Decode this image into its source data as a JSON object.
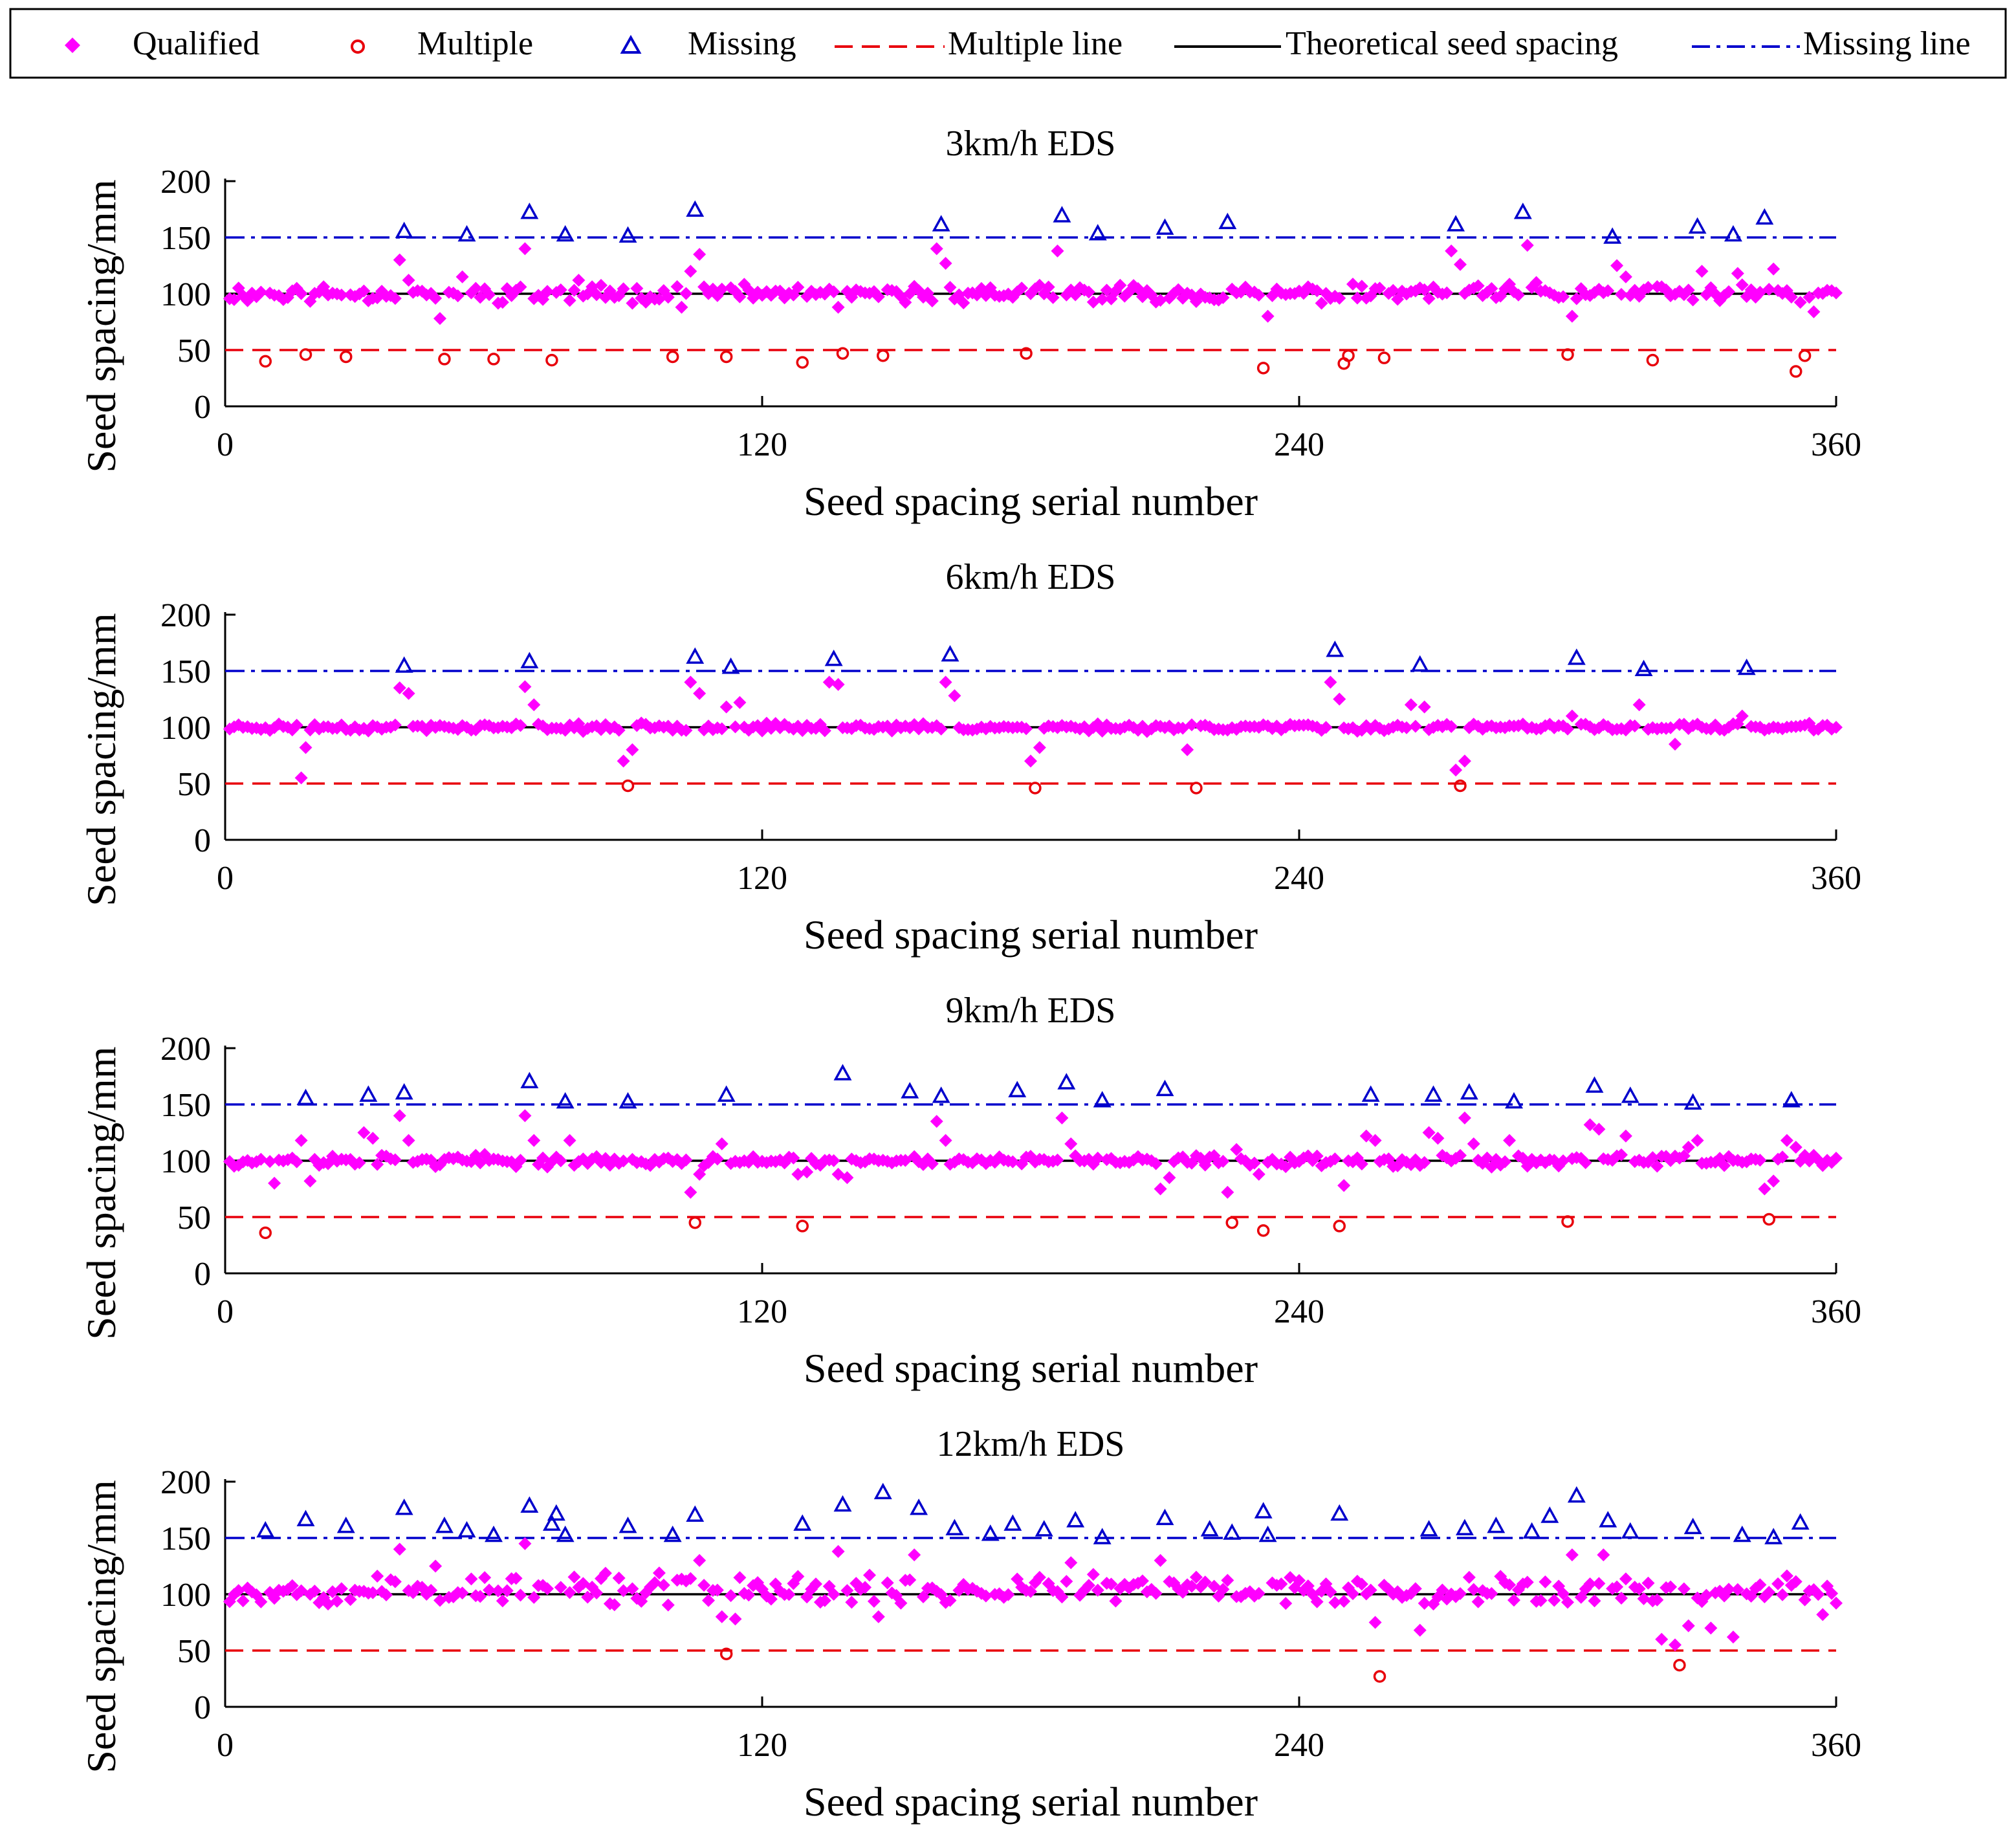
{
  "legend": {
    "items": [
      {
        "key": "qualified",
        "label": "Qualified",
        "marker": "diamond",
        "color": "#ff00ff"
      },
      {
        "key": "multiple",
        "label": "Multiple",
        "marker": "circle",
        "color": "#e8000b"
      },
      {
        "key": "missing",
        "label": "Missing",
        "marker": "triangle",
        "color": "#0000cc"
      },
      {
        "key": "multiple_line",
        "label": "Multiple line",
        "marker": "dashed-line",
        "color": "#e8000b"
      },
      {
        "key": "theoretical",
        "label": "Theoretical seed spacing",
        "marker": "solid-line",
        "color": "#000000"
      },
      {
        "key": "missing_line",
        "label": "Missing line",
        "marker": "dashdot-line",
        "color": "#0000cc"
      }
    ]
  },
  "chart_data": [
    {
      "type": "scatter",
      "title": "3km/h EDS",
      "xlabel": "Seed spacing serial number",
      "ylabel": "Seed spacing/mm",
      "xlim": [
        0,
        360
      ],
      "ylim": [
        0,
        200
      ],
      "xticks": [
        0,
        120,
        240,
        360
      ],
      "yticks": [
        0,
        50,
        100,
        150,
        200
      ],
      "reference_lines": {
        "theoretical": 100,
        "multiple": 50,
        "missing": 150
      },
      "multiple": [
        [
          9,
          40
        ],
        [
          18,
          46
        ],
        [
          27,
          44
        ],
        [
          49,
          42
        ],
        [
          60,
          42
        ],
        [
          73,
          41
        ],
        [
          100,
          44
        ],
        [
          112,
          44
        ],
        [
          129,
          39
        ],
        [
          138,
          47
        ],
        [
          147,
          45
        ],
        [
          179,
          47
        ],
        [
          232,
          34
        ],
        [
          250,
          38
        ],
        [
          251,
          45
        ],
        [
          259,
          43
        ],
        [
          300,
          46
        ],
        [
          319,
          41
        ],
        [
          351,
          31
        ],
        [
          353,
          45
        ]
      ],
      "missing": [
        [
          40,
          155
        ],
        [
          54,
          152
        ],
        [
          68,
          172
        ],
        [
          76,
          152
        ],
        [
          90,
          151
        ],
        [
          105,
          174
        ],
        [
          160,
          161
        ],
        [
          187,
          169
        ],
        [
          195,
          153
        ],
        [
          210,
          158
        ],
        [
          224,
          163
        ],
        [
          275,
          161
        ],
        [
          290,
          172
        ],
        [
          310,
          150
        ],
        [
          329,
          159
        ],
        [
          337,
          152
        ],
        [
          344,
          167
        ]
      ],
      "qualified_base": 100,
      "qualified_noise": 9,
      "qualified_seed": 11,
      "qualified_extra": [
        [
          39,
          130
        ],
        [
          41,
          112
        ],
        [
          48,
          78
        ],
        [
          53,
          115
        ],
        [
          67,
          140
        ],
        [
          71,
          95
        ],
        [
          73,
          74
        ],
        [
          79,
          112
        ],
        [
          102,
          88
        ],
        [
          104,
          120
        ],
        [
          106,
          135
        ],
        [
          137,
          88
        ],
        [
          159,
          140
        ],
        [
          161,
          127
        ],
        [
          186,
          138
        ],
        [
          233,
          80
        ],
        [
          250,
          78
        ],
        [
          274,
          138
        ],
        [
          276,
          126
        ],
        [
          291,
          143
        ],
        [
          293,
          110
        ],
        [
          301,
          80
        ],
        [
          311,
          125
        ],
        [
          313,
          115
        ],
        [
          330,
          120
        ],
        [
          338,
          118
        ],
        [
          346,
          122
        ],
        [
          355,
          84
        ]
      ]
    },
    {
      "type": "scatter",
      "title": "6km/h EDS",
      "xlabel": "Seed spacing serial number",
      "ylabel": "Seed spacing/mm",
      "xlim": [
        0,
        360
      ],
      "ylim": [
        0,
        200
      ],
      "xticks": [
        0,
        120,
        240,
        360
      ],
      "yticks": [
        0,
        50,
        100,
        150,
        200
      ],
      "reference_lines": {
        "theoretical": 100,
        "multiple": 50,
        "missing": 150
      },
      "multiple": [
        [
          90,
          48
        ],
        [
          181,
          46
        ],
        [
          217,
          46
        ],
        [
          276,
          48
        ]
      ],
      "missing": [
        [
          40,
          154
        ],
        [
          68,
          158
        ],
        [
          105,
          162
        ],
        [
          113,
          153
        ],
        [
          136,
          160
        ],
        [
          162,
          164
        ],
        [
          248,
          168
        ],
        [
          267,
          155
        ],
        [
          302,
          161
        ],
        [
          317,
          151
        ],
        [
          340,
          152
        ]
      ],
      "qualified_base": 100,
      "qualified_noise": 4,
      "qualified_seed": 23,
      "qualified_extra": [
        [
          17,
          55
        ],
        [
          18,
          82
        ],
        [
          39,
          135
        ],
        [
          41,
          130
        ],
        [
          67,
          136
        ],
        [
          69,
          120
        ],
        [
          89,
          70
        ],
        [
          91,
          80
        ],
        [
          104,
          140
        ],
        [
          106,
          130
        ],
        [
          112,
          118
        ],
        [
          115,
          122
        ],
        [
          135,
          140
        ],
        [
          137,
          138
        ],
        [
          161,
          140
        ],
        [
          163,
          128
        ],
        [
          180,
          70
        ],
        [
          182,
          82
        ],
        [
          215,
          80
        ],
        [
          217,
          88
        ],
        [
          247,
          140
        ],
        [
          249,
          125
        ],
        [
          265,
          120
        ],
        [
          268,
          118
        ],
        [
          275,
          62
        ],
        [
          277,
          70
        ],
        [
          301,
          110
        ],
        [
          316,
          120
        ],
        [
          324,
          85
        ],
        [
          339,
          110
        ]
      ]
    },
    {
      "type": "scatter",
      "title": "9km/h EDS",
      "xlabel": "Seed spacing serial number",
      "ylabel": "Seed spacing/mm",
      "xlim": [
        0,
        360
      ],
      "ylim": [
        0,
        200
      ],
      "xticks": [
        0,
        120,
        240,
        360
      ],
      "yticks": [
        0,
        50,
        100,
        150,
        200
      ],
      "reference_lines": {
        "theoretical": 100,
        "multiple": 50,
        "missing": 150
      },
      "multiple": [
        [
          9,
          36
        ],
        [
          105,
          45
        ],
        [
          129,
          42
        ],
        [
          225,
          45
        ],
        [
          232,
          38
        ],
        [
          249,
          42
        ],
        [
          300,
          46
        ],
        [
          345,
          48
        ]
      ],
      "missing": [
        [
          18,
          155
        ],
        [
          32,
          158
        ],
        [
          40,
          160
        ],
        [
          68,
          170
        ],
        [
          76,
          152
        ],
        [
          90,
          152
        ],
        [
          112,
          158
        ],
        [
          138,
          177
        ],
        [
          153,
          161
        ],
        [
          160,
          157
        ],
        [
          177,
          162
        ],
        [
          188,
          169
        ],
        [
          196,
          153
        ],
        [
          210,
          163
        ],
        [
          256,
          158
        ],
        [
          270,
          158
        ],
        [
          278,
          160
        ],
        [
          288,
          152
        ],
        [
          306,
          166
        ],
        [
          314,
          157
        ],
        [
          328,
          151
        ],
        [
          350,
          153
        ]
      ],
      "qualified_base": 100,
      "qualified_noise": 6,
      "qualified_seed": 37,
      "qualified_extra": [
        [
          9,
          72
        ],
        [
          11,
          80
        ],
        [
          17,
          118
        ],
        [
          19,
          82
        ],
        [
          31,
          125
        ],
        [
          33,
          120
        ],
        [
          39,
          140
        ],
        [
          41,
          118
        ],
        [
          67,
          140
        ],
        [
          69,
          118
        ],
        [
          77,
          118
        ],
        [
          104,
          72
        ],
        [
          106,
          88
        ],
        [
          111,
          115
        ],
        [
          128,
          88
        ],
        [
          130,
          90
        ],
        [
          137,
          88
        ],
        [
          139,
          85
        ],
        [
          159,
          135
        ],
        [
          161,
          118
        ],
        [
          187,
          138
        ],
        [
          189,
          115
        ],
        [
          209,
          75
        ],
        [
          211,
          85
        ],
        [
          224,
          72
        ],
        [
          226,
          110
        ],
        [
          231,
          88
        ],
        [
          250,
          78
        ],
        [
          255,
          122
        ],
        [
          257,
          118
        ],
        [
          269,
          125
        ],
        [
          271,
          120
        ],
        [
          277,
          138
        ],
        [
          279,
          115
        ],
        [
          287,
          118
        ],
        [
          305,
          132
        ],
        [
          307,
          128
        ],
        [
          313,
          122
        ],
        [
          327,
          112
        ],
        [
          329,
          118
        ],
        [
          344,
          75
        ],
        [
          346,
          82
        ],
        [
          349,
          118
        ],
        [
          351,
          112
        ]
      ]
    },
    {
      "type": "scatter",
      "title": "12km/h EDS",
      "xlabel": "Seed spacing serial number",
      "ylabel": "Seed spacing/mm",
      "xlim": [
        0,
        360
      ],
      "ylim": [
        0,
        200
      ],
      "xticks": [
        0,
        120,
        240,
        360
      ],
      "yticks": [
        0,
        50,
        100,
        150,
        200
      ],
      "reference_lines": {
        "theoretical": 100,
        "multiple": 50,
        "missing": 150
      },
      "multiple": [
        [
          112,
          47
        ],
        [
          258,
          27
        ],
        [
          325,
          37
        ]
      ],
      "missing": [
        [
          9,
          156
        ],
        [
          18,
          166
        ],
        [
          27,
          160
        ],
        [
          40,
          176
        ],
        [
          49,
          160
        ],
        [
          54,
          156
        ],
        [
          60,
          152
        ],
        [
          68,
          178
        ],
        [
          73,
          162
        ],
        [
          74,
          171
        ],
        [
          76,
          152
        ],
        [
          90,
          160
        ],
        [
          100,
          152
        ],
        [
          105,
          170
        ],
        [
          129,
          162
        ],
        [
          138,
          179
        ],
        [
          147,
          190
        ],
        [
          155,
          176
        ],
        [
          163,
          158
        ],
        [
          171,
          153
        ],
        [
          176,
          162
        ],
        [
          183,
          157
        ],
        [
          190,
          165
        ],
        [
          196,
          150
        ],
        [
          210,
          167
        ],
        [
          220,
          157
        ],
        [
          225,
          154
        ],
        [
          232,
          173
        ],
        [
          233,
          152
        ],
        [
          249,
          171
        ],
        [
          269,
          157
        ],
        [
          277,
          158
        ],
        [
          284,
          160
        ],
        [
          292,
          155
        ],
        [
          296,
          169
        ],
        [
          302,
          187
        ],
        [
          309,
          165
        ],
        [
          314,
          155
        ],
        [
          328,
          159
        ],
        [
          339,
          152
        ],
        [
          346,
          150
        ],
        [
          352,
          163
        ]
      ],
      "qualified_base": 104,
      "qualified_noise": 16,
      "qualified_seed": 53,
      "qualified_extra": [
        [
          39,
          140
        ],
        [
          47,
          125
        ],
        [
          67,
          145
        ],
        [
          73,
          128
        ],
        [
          106,
          130
        ],
        [
          111,
          80
        ],
        [
          114,
          78
        ],
        [
          137,
          138
        ],
        [
          146,
          80
        ],
        [
          154,
          135
        ],
        [
          189,
          128
        ],
        [
          209,
          130
        ],
        [
          257,
          75
        ],
        [
          267,
          68
        ],
        [
          301,
          135
        ],
        [
          308,
          135
        ],
        [
          321,
          60
        ],
        [
          324,
          55
        ],
        [
          327,
          72
        ],
        [
          332,
          70
        ],
        [
          337,
          62
        ],
        [
          357,
          82
        ]
      ]
    }
  ]
}
